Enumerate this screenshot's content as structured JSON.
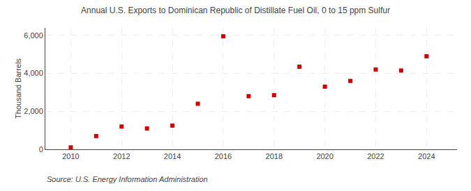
{
  "chart_data": {
    "type": "scatter",
    "title": "Annual U.S. Exports to Dominican Republic of Distillate Fuel Oil, 0 to 15 ppm Sulfur",
    "ylabel": "Thousand Barrels",
    "annotations": [
      "Source: U.S. Energy Information Administration"
    ],
    "x": [
      2010,
      2011,
      2012,
      2013,
      2014,
      2015,
      2016,
      2017,
      2018,
      2019,
      2020,
      2021,
      2022,
      2023,
      2024
    ],
    "values": [
      100,
      700,
      1200,
      1100,
      1250,
      2400,
      5950,
      2800,
      2850,
      4350,
      3300,
      3600,
      4200,
      4150,
      4900
    ],
    "color": "#cc0000",
    "marker": "square",
    "xlim": [
      2009.0,
      2025.2
    ],
    "xticks": [
      2010,
      2012,
      2014,
      2016,
      2018,
      2020,
      2022,
      2024
    ],
    "ylim": [
      0,
      6400
    ],
    "yticks": [
      0,
      {
        "value": 2000,
        "label": "2,000"
      },
      {
        "value": 4000,
        "label": "4,000"
      },
      {
        "value": 6000,
        "label": "6,000"
      }
    ],
    "grid": true
  }
}
